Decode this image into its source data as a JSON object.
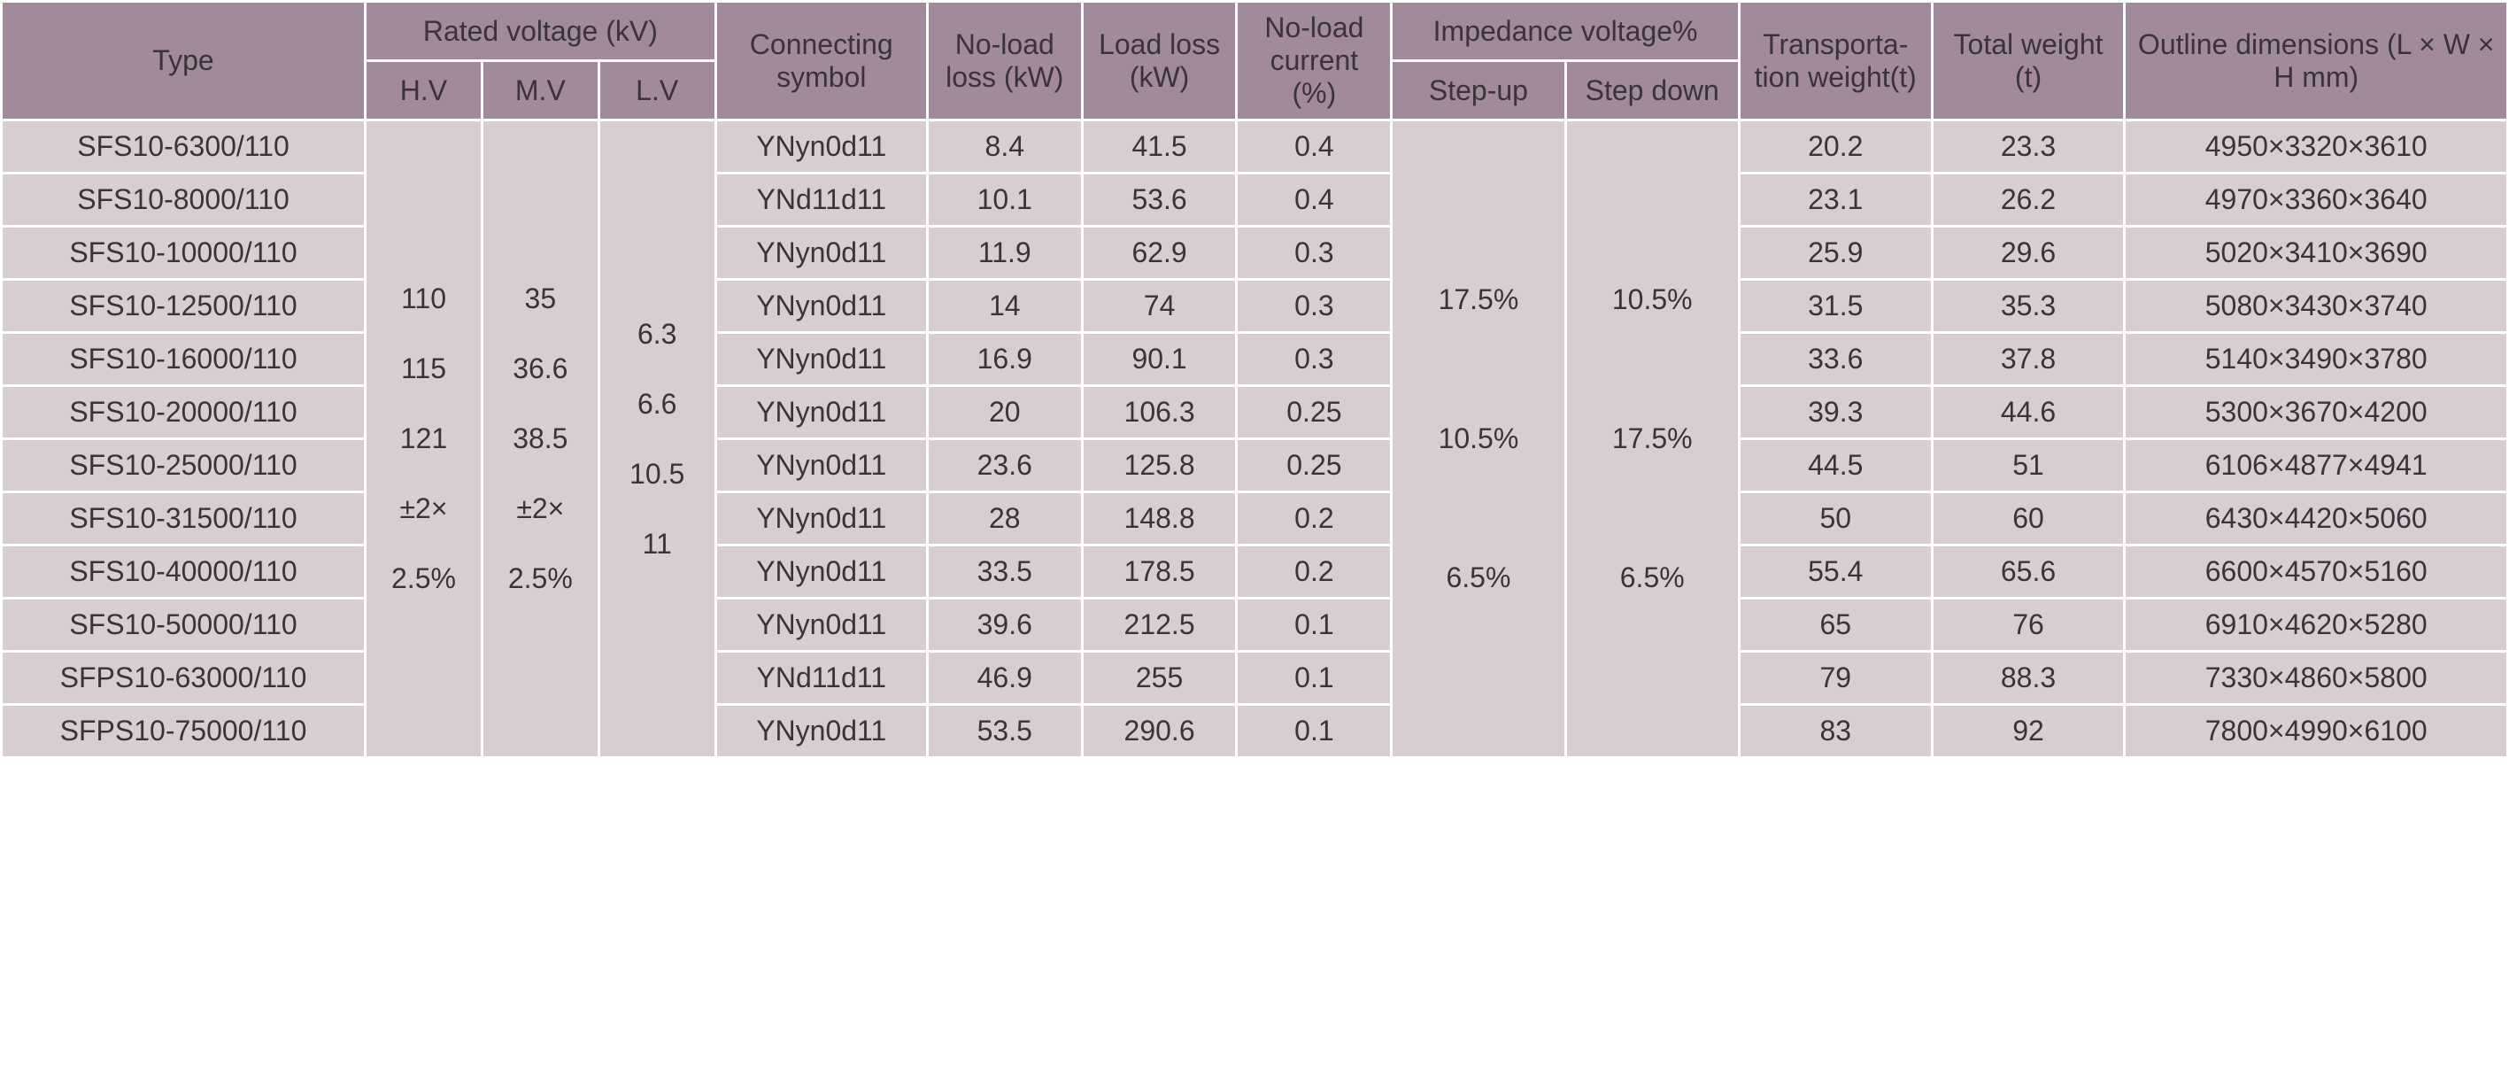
{
  "table": {
    "headers": {
      "type": "Type",
      "rated_voltage": "Rated  voltage (kV)",
      "hv": "H.V",
      "mv": "M.V",
      "lv": "L.V",
      "connecting": "Connecting symbol",
      "noload_loss": "No-load loss (kW)",
      "load_loss": "Load loss (kW)",
      "noload_current": "No-load current (%)",
      "impedance": "Impedance voltage%",
      "stepup": "Step-up",
      "stepdown": "Step down",
      "transport": "Transporta-tion weight(t)",
      "total_weight": "Total weight (t)",
      "dimensions": "Outline dimensions (L × W × H  mm)"
    },
    "hv_values": [
      "110",
      "115",
      "121",
      "±2×",
      "2.5%"
    ],
    "mv_values": [
      "35",
      "36.6",
      "38.5",
      "±2×",
      "2.5%"
    ],
    "lv_values": [
      "6.3",
      "6.6",
      "10.5",
      "11"
    ],
    "stepup_values": [
      "17.5%",
      "10.5%",
      "6.5%"
    ],
    "stepdown_values": [
      "10.5%",
      "17.5%",
      "6.5%"
    ],
    "rows": [
      {
        "type": "SFS10-6300/110",
        "conn": "YNyn0d11",
        "noload": "8.4",
        "load": "41.5",
        "current": "0.4",
        "trans": "20.2",
        "total": "23.3",
        "dim": "4950×3320×3610"
      },
      {
        "type": "SFS10-8000/110",
        "conn": "YNd11d11",
        "noload": "10.1",
        "load": "53.6",
        "current": "0.4",
        "trans": "23.1",
        "total": "26.2",
        "dim": "4970×3360×3640"
      },
      {
        "type": "SFS10-10000/110",
        "conn": "YNyn0d11",
        "noload": "11.9",
        "load": "62.9",
        "current": "0.3",
        "trans": "25.9",
        "total": "29.6",
        "dim": "5020×3410×3690"
      },
      {
        "type": "SFS10-12500/110",
        "conn": "YNyn0d11",
        "noload": "14",
        "load": "74",
        "current": "0.3",
        "trans": "31.5",
        "total": "35.3",
        "dim": "5080×3430×3740"
      },
      {
        "type": "SFS10-16000/110",
        "conn": "YNyn0d11",
        "noload": "16.9",
        "load": "90.1",
        "current": "0.3",
        "trans": "33.6",
        "total": "37.8",
        "dim": "5140×3490×3780"
      },
      {
        "type": "SFS10-20000/110",
        "conn": "YNyn0d11",
        "noload": "20",
        "load": "106.3",
        "current": "0.25",
        "trans": "39.3",
        "total": "44.6",
        "dim": "5300×3670×4200"
      },
      {
        "type": "SFS10-25000/110",
        "conn": "YNyn0d11",
        "noload": "23.6",
        "load": "125.8",
        "current": "0.25",
        "trans": "44.5",
        "total": "51",
        "dim": "6106×4877×4941"
      },
      {
        "type": "SFS10-31500/110",
        "conn": "YNyn0d11",
        "noload": "28",
        "load": "148.8",
        "current": "0.2",
        "trans": "50",
        "total": "60",
        "dim": "6430×4420×5060"
      },
      {
        "type": "SFS10-40000/110",
        "conn": "YNyn0d11",
        "noload": "33.5",
        "load": "178.5",
        "current": "0.2",
        "trans": "55.4",
        "total": "65.6",
        "dim": "6600×4570×5160"
      },
      {
        "type": "SFS10-50000/110",
        "conn": "YNyn0d11",
        "noload": "39.6",
        "load": "212.5",
        "current": "0.1",
        "trans": "65",
        "total": "76",
        "dim": "6910×4620×5280"
      },
      {
        "type": "SFPS10-63000/110",
        "conn": "YNd11d11",
        "noload": "46.9",
        "load": "255",
        "current": "0.1",
        "trans": "79",
        "total": "88.3",
        "dim": "7330×4860×5800"
      },
      {
        "type": "SFPS10-75000/110",
        "conn": "YNyn0d11",
        "noload": "53.5",
        "load": "290.6",
        "current": "0.1",
        "trans": "83",
        "total": "92",
        "dim": "7800×4990×6100"
      }
    ],
    "colors": {
      "header_bg": "#a18a9b",
      "cell_bg": "#d8cdd2",
      "text": "#3a3338",
      "spacing_bg": "#ffffff"
    },
    "fontsize": 32
  }
}
